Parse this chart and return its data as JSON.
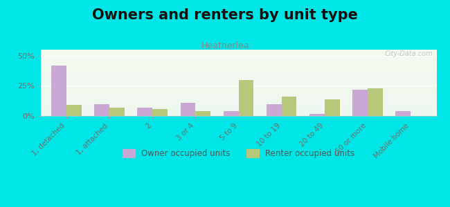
{
  "title": "Owners and renters by unit type",
  "subtitle": "Heatherlea",
  "categories": [
    "1, detached",
    "1, attached",
    "2",
    "3 or 4",
    "5 to 9",
    "10 to 19",
    "20 to 49",
    "50 or more",
    "Mobile home"
  ],
  "owner_values": [
    42,
    10,
    7,
    11,
    4,
    10,
    2,
    22,
    4
  ],
  "renter_values": [
    9,
    7,
    6,
    4,
    30,
    16,
    14,
    23,
    0
  ],
  "owner_color": "#c9a8d4",
  "renter_color": "#b8c87a",
  "ylim": [
    0,
    55
  ],
  "yticks": [
    0,
    25,
    50
  ],
  "ytick_labels": [
    "0%",
    "25%",
    "50%"
  ],
  "bg_color_top": "#f5faf0",
  "bg_color_bottom": "#eef7ee",
  "outer_bg": "#00e5e5",
  "bar_width": 0.35,
  "title_fontsize": 15,
  "subtitle_fontsize": 9,
  "legend_labels": [
    "Owner occupied units",
    "Renter occupied units"
  ],
  "watermark": "City-Data.com"
}
